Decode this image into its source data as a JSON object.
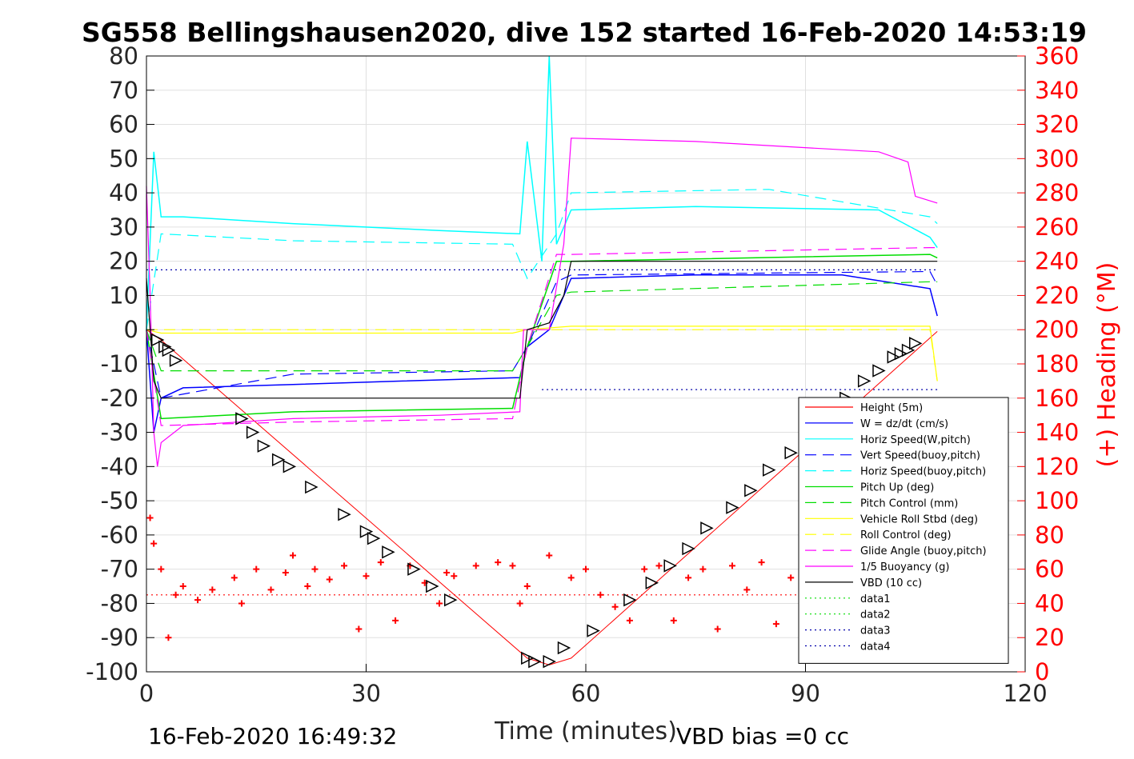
{
  "chart_data": {
    "type": "line",
    "title": "SG558 Bellingshausen2020, dive 152 started 16-Feb-2020 14:53:19",
    "xlabel": "Time (minutes)",
    "ylabel": "",
    "ylabel_right": "(+) Heading (°M)",
    "xlim": [
      0,
      120
    ],
    "ylim": [
      -100,
      80
    ],
    "ylim_right": [
      0,
      360
    ],
    "x_ticks": [
      "0",
      "30",
      "60",
      "90",
      "120"
    ],
    "y_ticks": [
      "80",
      "70",
      "60",
      "50",
      "40",
      "30",
      "20",
      "10",
      "0",
      "-10",
      "-20",
      "-30",
      "-40",
      "-50",
      "-60",
      "-70",
      "-80",
      "-90",
      "-100"
    ],
    "y_ticks_right": [
      "360",
      "340",
      "320",
      "300",
      "280",
      "260",
      "240",
      "220",
      "200",
      "180",
      "160",
      "140",
      "120",
      "100",
      "80",
      "60",
      "40",
      "20",
      "0"
    ],
    "grid": true,
    "legend_position": "right",
    "colors": {
      "height": "#ff0000",
      "w": "#0000ff",
      "horiz_w": "#00ffff",
      "vert_buoy": "#0000ff",
      "horiz_buoy": "#00ffff",
      "pitch_up": "#00dd00",
      "pitch_control": "#00dd00",
      "roll": "#ffff00",
      "roll_control": "#ffff00",
      "glide_angle": "#ff00ff",
      "buoyancy": "#ff00ff",
      "vbd": "#000000",
      "heading": "#ff0000"
    },
    "series": [
      {
        "key": "height",
        "name": "Height (5m)",
        "x": [
          0,
          2,
          52,
          55,
          58,
          108
        ],
        "values": [
          0,
          -3,
          -96,
          -98,
          -96,
          -0.5
        ]
      },
      {
        "key": "w",
        "name": "W = dz/dt (cm/s)",
        "x": [
          0,
          1,
          2,
          5,
          20,
          35,
          51,
          52,
          55,
          58,
          75,
          95,
          107,
          108
        ],
        "values": [
          0,
          -30,
          -20,
          -17,
          -16,
          -15,
          -14,
          -5,
          0,
          15,
          16,
          16,
          12,
          4
        ]
      },
      {
        "key": "horiz_w",
        "name": "Horiz Speed(W,pitch)",
        "x": [
          0,
          1,
          2,
          5,
          20,
          40,
          51,
          52,
          54,
          55,
          56,
          58,
          75,
          100,
          107,
          108
        ],
        "values": [
          0,
          52,
          33,
          33,
          31,
          29,
          28,
          55,
          20,
          80,
          25,
          35,
          36,
          35,
          27,
          24
        ]
      },
      {
        "key": "vert_buoy",
        "name": "Vert Speed(buoy,pitch)",
        "x": [
          0,
          2,
          20,
          50,
          52,
          56,
          58,
          107,
          108
        ],
        "values": [
          0,
          -20,
          -13,
          -12,
          -5,
          14,
          16,
          17,
          13
        ]
      },
      {
        "key": "horiz_buoy",
        "name": "Horiz Speed(buoy,pitch)",
        "x": [
          0,
          2,
          20,
          50,
          52,
          56,
          58,
          85,
          107,
          108
        ],
        "values": [
          0,
          28,
          26,
          25,
          15,
          28,
          40,
          41,
          33,
          31
        ]
      },
      {
        "key": "pitch_up",
        "name": "Pitch Up (deg)",
        "x": [
          0,
          2,
          20,
          50,
          52,
          56,
          58,
          107,
          108
        ],
        "values": [
          0,
          -26,
          -24,
          -23,
          -5,
          20,
          20,
          22,
          21
        ]
      },
      {
        "key": "pitch_control",
        "name": "Pitch Control (mm)",
        "x": [
          0,
          2,
          50,
          52,
          56,
          58,
          107,
          108
        ],
        "values": [
          0,
          -12,
          -12,
          -5,
          10,
          11,
          14,
          14
        ]
      },
      {
        "key": "roll",
        "name": "Vehicle Roll Stbd (deg)",
        "x": [
          0,
          2,
          50,
          52,
          58,
          107,
          108
        ],
        "values": [
          0,
          -1,
          -1,
          0,
          1,
          1,
          -15
        ]
      },
      {
        "key": "roll_control",
        "name": "Roll Control (deg)",
        "x": [
          0,
          2,
          50,
          52,
          58,
          107,
          108
        ],
        "values": [
          0,
          0,
          0,
          0,
          0,
          0,
          -15
        ]
      },
      {
        "key": "glide_angle",
        "name": "Glide Angle (buoy,pitch)",
        "x": [
          0,
          2,
          20,
          50,
          52,
          56,
          58,
          107,
          108
        ],
        "values": [
          0,
          -28,
          -27,
          -26,
          -5,
          22,
          22,
          24,
          24
        ]
      },
      {
        "key": "buoyancy",
        "name": "1/5 Buoyancy (g)",
        "x": [
          0,
          0.5,
          1,
          1.5,
          2,
          5,
          20,
          40,
          51,
          51.5,
          55,
          57,
          58,
          75,
          100,
          104,
          105,
          108
        ],
        "values": [
          42,
          10,
          -30,
          -40,
          -33,
          -28,
          -26,
          -25,
          -24,
          0,
          0,
          25,
          56,
          55,
          52,
          49,
          39,
          37
        ]
      },
      {
        "key": "vbd",
        "name": "VBD (10 cc)",
        "x": [
          0,
          1,
          2,
          51,
          52,
          55,
          57,
          58,
          108
        ],
        "values": [
          15,
          -15,
          -20,
          -20,
          0,
          2,
          10,
          20,
          20
        ]
      },
      {
        "key": "data1",
        "name": "data1",
        "x": [
          0,
          108
        ],
        "values": [
          -77.5,
          -77.5
        ]
      },
      {
        "key": "data2",
        "name": "data2",
        "x": [],
        "values": []
      },
      {
        "key": "data3",
        "name": "data3",
        "x": [
          0,
          108
        ],
        "values": [
          17.5,
          17.5
        ]
      },
      {
        "key": "data4",
        "name": "data4",
        "x": [
          54,
          108
        ],
        "values": [
          -17.5,
          -17.5
        ]
      }
    ],
    "heading_series": {
      "name": "(+) Heading (°M)",
      "x": [
        0.5,
        1,
        2,
        3,
        4,
        5,
        7,
        9,
        12,
        13,
        15,
        17,
        19,
        20,
        22,
        23,
        25,
        27,
        29,
        30,
        32,
        34,
        36,
        38,
        40,
        41,
        42,
        45,
        48,
        50,
        51,
        52,
        55,
        58,
        60,
        62,
        64,
        66,
        68,
        70,
        72,
        74,
        76,
        78,
        80,
        82,
        84,
        86,
        88,
        90,
        92,
        94,
        96,
        98,
        99
      ],
      "values": [
        90,
        75,
        60,
        20,
        45,
        50,
        42,
        48,
        55,
        40,
        60,
        48,
        58,
        68,
        50,
        60,
        54,
        62,
        25,
        56,
        64,
        30,
        62,
        52,
        40,
        58,
        56,
        62,
        64,
        62,
        40,
        50,
        68,
        55,
        60,
        45,
        38,
        30,
        60,
        62,
        30,
        55,
        60,
        25,
        62,
        48,
        64,
        28,
        55,
        60,
        35,
        62,
        30,
        55,
        66
      ]
    },
    "apogee_markers": {
      "x": [
        1.5,
        2.5,
        3,
        4,
        13,
        14.5,
        16,
        18,
        19.5,
        22.5,
        27,
        30,
        31,
        33,
        36.5,
        39,
        41.5,
        52,
        53,
        55,
        57,
        61,
        66,
        69,
        71.5,
        74,
        76.5,
        80,
        82.5,
        85,
        88,
        90,
        93,
        95.5,
        98,
        100,
        102,
        103,
        104,
        105
      ],
      "values": [
        -3,
        -5,
        -6,
        -9,
        -26,
        -30,
        -34,
        -38,
        -40,
        -46,
        -54,
        -59,
        -61,
        -65,
        -70,
        -75,
        -79,
        -96,
        -97,
        -97,
        -93,
        -88,
        -79,
        -74,
        -69,
        -64,
        -58,
        -52,
        -47,
        -41,
        -36,
        -32,
        -26,
        -20,
        -15,
        -12,
        -8,
        -7,
        -6,
        -4
      ]
    }
  },
  "footer": {
    "timestamp": "16-Feb-2020 16:49:32",
    "vbd_bias": "VBD bias =0 cc"
  }
}
